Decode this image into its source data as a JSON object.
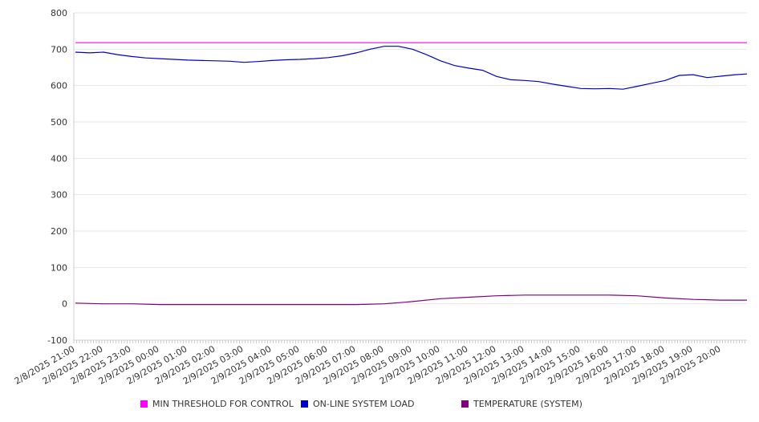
{
  "chart_data": {
    "type": "line",
    "title": "",
    "xlabel": "",
    "ylabel": "",
    "ylim": [
      -100,
      800
    ],
    "y_ticks": [
      800,
      700,
      600,
      500,
      400,
      300,
      200,
      100,
      0,
      -100
    ],
    "x_tick_labels": [
      "2/8/2025 21:00",
      "2/8/2025 22:00",
      "2/8/2025 23:00",
      "2/9/2025 00:00",
      "2/9/2025 01:00",
      "2/9/2025 02:00",
      "2/9/2025 03:00",
      "2/9/2025 04:00",
      "2/9/2025 05:00",
      "2/9/2025 06:00",
      "2/9/2025 07:00",
      "2/9/2025 08:00",
      "2/9/2025 09:00",
      "2/9/2025 10:00",
      "2/9/2025 11:00",
      "2/9/2025 12:00",
      "2/9/2025 13:00",
      "2/9/2025 14:00",
      "2/9/2025 15:00",
      "2/9/2025 16:00",
      "2/9/2025 17:00",
      "2/9/2025 18:00",
      "2/9/2025 19:00",
      "2/9/2025 20:00"
    ],
    "grid": "horizontal",
    "legend_position": "bottom",
    "series": [
      {
        "name": "MIN THRESHOLD FOR CONTROL",
        "color": "#ff00ff",
        "x": [
          "2/8/2025 21:00",
          "2/9/2025 21:00"
        ],
        "values": [
          718,
          718
        ]
      },
      {
        "name": "ON-LINE SYSTEM LOAD",
        "color": "#0000cc",
        "x": [
          "2/8/2025 21:00",
          "2/8/2025 21:30",
          "2/8/2025 22:00",
          "2/8/2025 22:30",
          "2/8/2025 23:00",
          "2/8/2025 23:30",
          "2/9/2025 00:00",
          "2/9/2025 00:30",
          "2/9/2025 01:00",
          "2/9/2025 01:30",
          "2/9/2025 02:00",
          "2/9/2025 02:30",
          "2/9/2025 03:00",
          "2/9/2025 03:30",
          "2/9/2025 04:00",
          "2/9/2025 04:30",
          "2/9/2025 05:00",
          "2/9/2025 05:30",
          "2/9/2025 06:00",
          "2/9/2025 06:30",
          "2/9/2025 07:00",
          "2/9/2025 07:30",
          "2/9/2025 08:00",
          "2/9/2025 08:30",
          "2/9/2025 09:00",
          "2/9/2025 09:30",
          "2/9/2025 10:00",
          "2/9/2025 10:30",
          "2/9/2025 11:00",
          "2/9/2025 11:30",
          "2/9/2025 12:00",
          "2/9/2025 12:30",
          "2/9/2025 13:00",
          "2/9/2025 13:30",
          "2/9/2025 14:00",
          "2/9/2025 14:30",
          "2/9/2025 15:00",
          "2/9/2025 15:30",
          "2/9/2025 16:00",
          "2/9/2025 16:30",
          "2/9/2025 17:00",
          "2/9/2025 17:30",
          "2/9/2025 18:00",
          "2/9/2025 18:30",
          "2/9/2025 19:00",
          "2/9/2025 19:30",
          "2/9/2025 20:00",
          "2/9/2025 20:30",
          "2/9/2025 21:00"
        ],
        "values": [
          692,
          690,
          692,
          685,
          680,
          676,
          674,
          672,
          670,
          669,
          668,
          667,
          664,
          666,
          669,
          671,
          672,
          674,
          677,
          682,
          690,
          700,
          708,
          708,
          700,
          685,
          668,
          655,
          648,
          642,
          625,
          616,
          614,
          611,
          604,
          598,
          592,
          591,
          592,
          590,
          598,
          606,
          614,
          628,
          630,
          622,
          626,
          630,
          632
        ]
      },
      {
        "name": "TEMPERATURE (SYSTEM)",
        "color": "#800080",
        "x": [
          "2/8/2025 21:00",
          "2/8/2025 22:00",
          "2/8/2025 23:00",
          "2/9/2025 00:00",
          "2/9/2025 01:00",
          "2/9/2025 02:00",
          "2/9/2025 03:00",
          "2/9/2025 04:00",
          "2/9/2025 05:00",
          "2/9/2025 06:00",
          "2/9/2025 07:00",
          "2/9/2025 08:00",
          "2/9/2025 09:00",
          "2/9/2025 10:00",
          "2/9/2025 11:00",
          "2/9/2025 12:00",
          "2/9/2025 13:00",
          "2/9/2025 14:00",
          "2/9/2025 15:00",
          "2/9/2025 16:00",
          "2/9/2025 17:00",
          "2/9/2025 18:00",
          "2/9/2025 19:00",
          "2/9/2025 20:00",
          "2/9/2025 21:00"
        ],
        "values": [
          2,
          0,
          0,
          -2,
          -2,
          -2,
          -2,
          -2,
          -2,
          -2,
          -2,
          0,
          6,
          14,
          18,
          22,
          24,
          24,
          24,
          24,
          22,
          16,
          12,
          10,
          10
        ]
      }
    ]
  }
}
